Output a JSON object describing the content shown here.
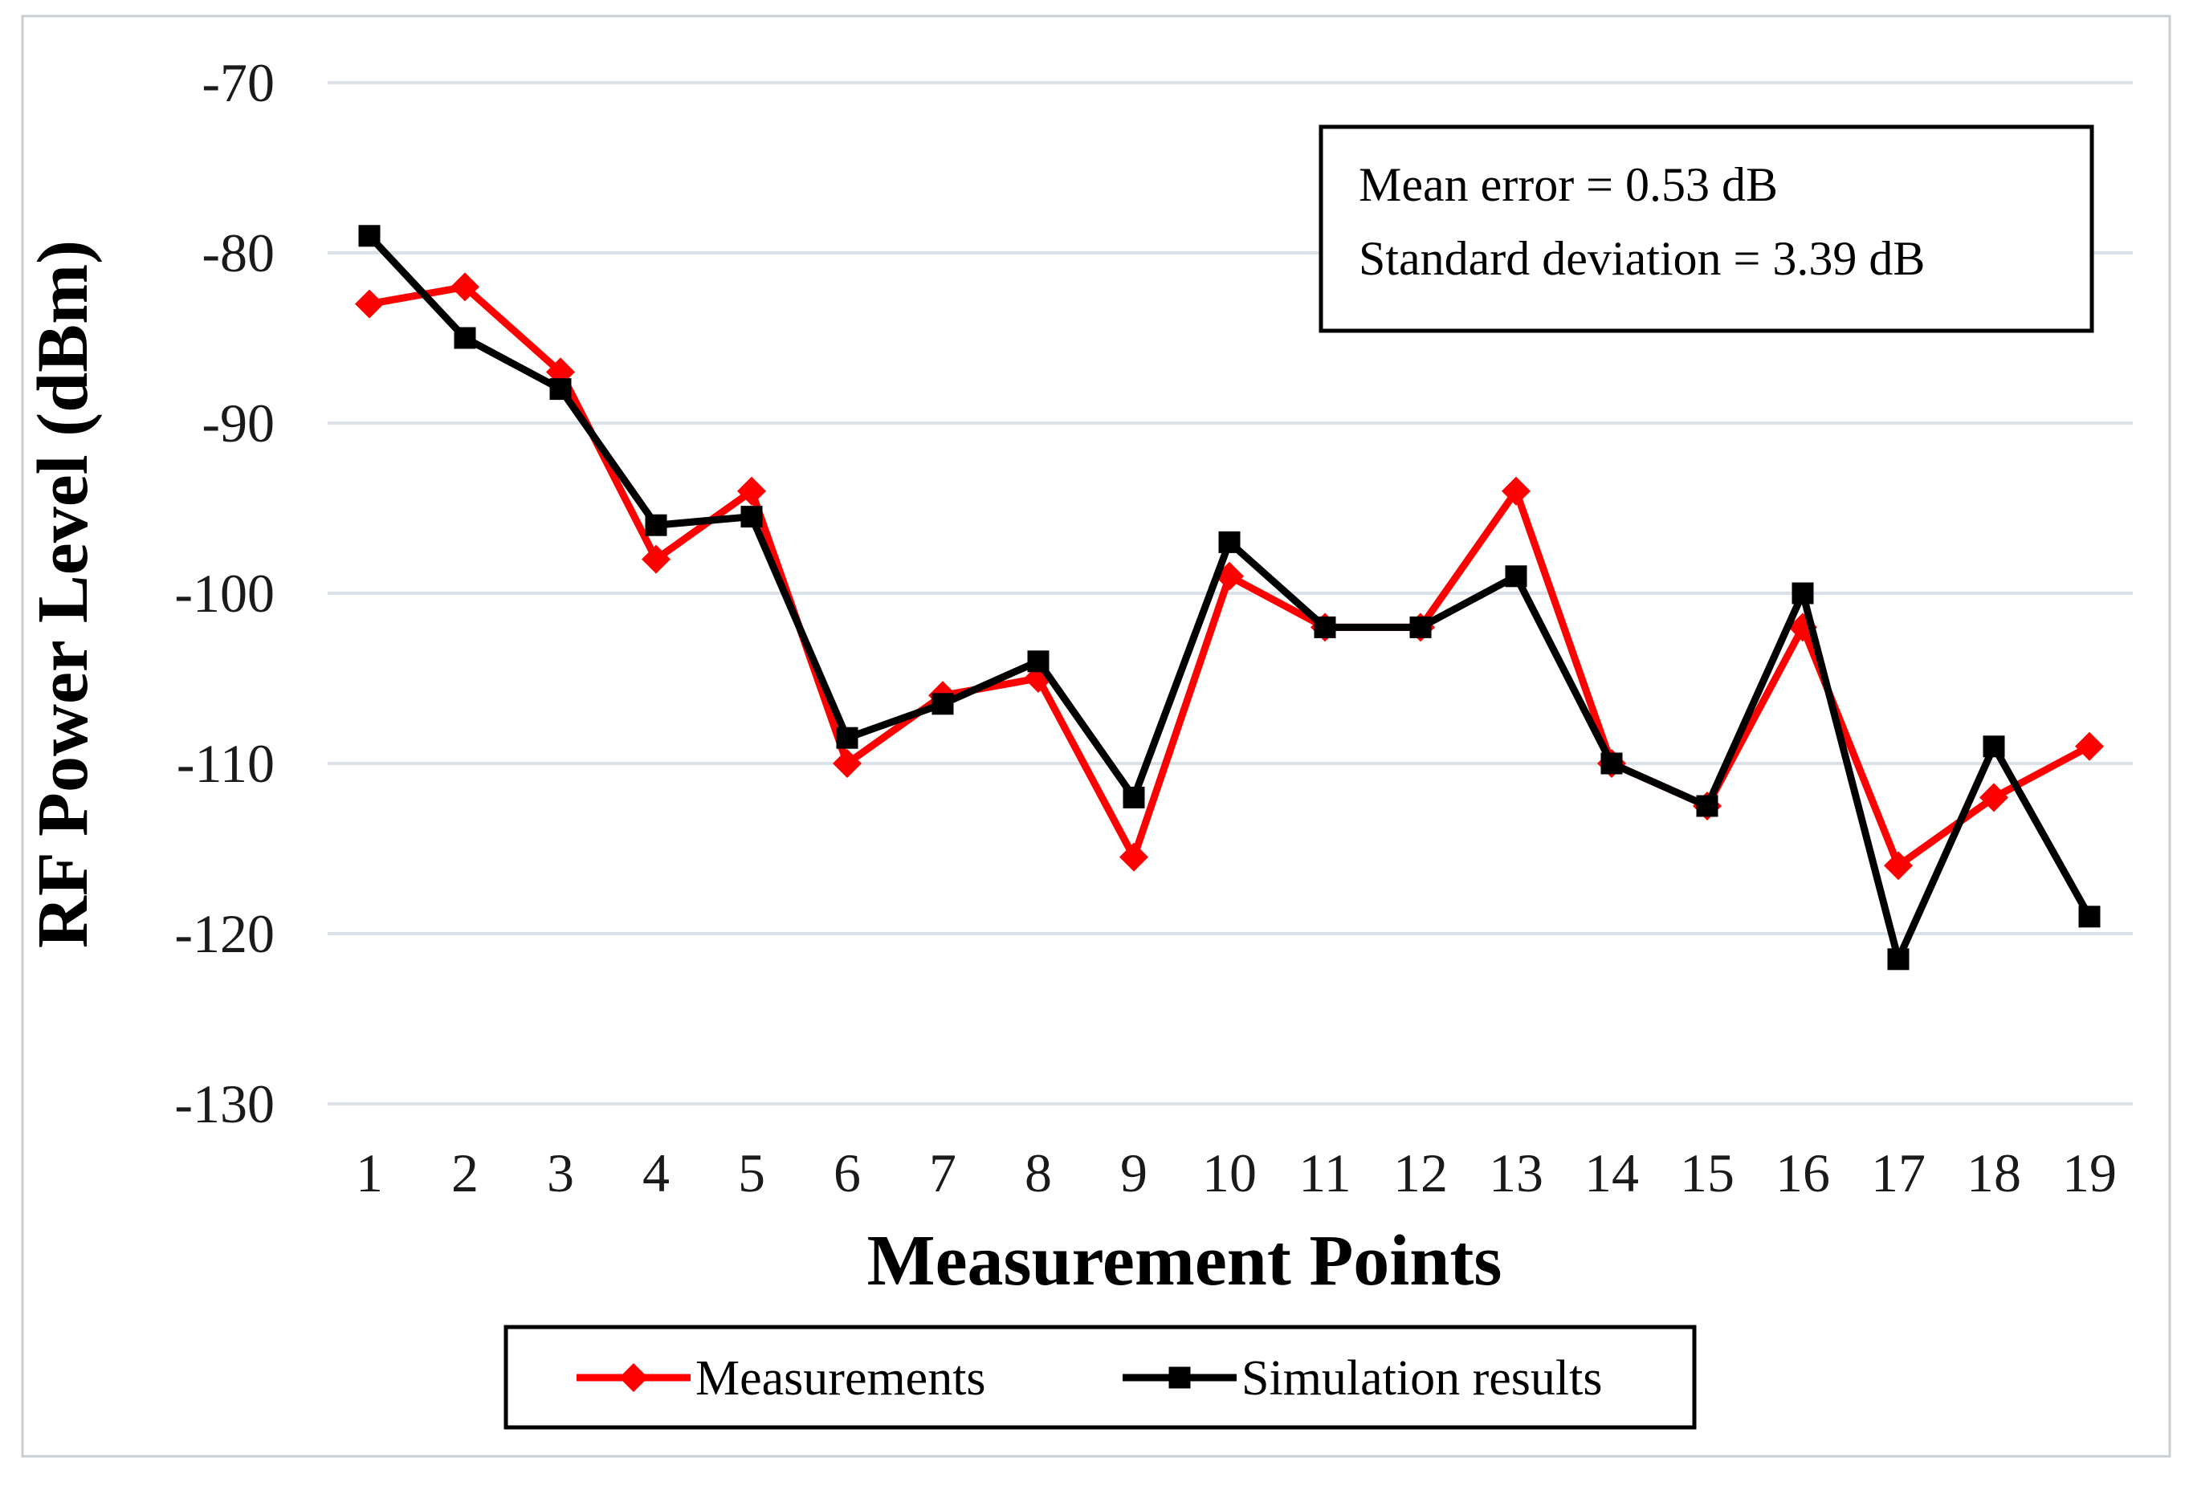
{
  "colors": {
    "background": "#ffffff",
    "figure_border": "#c9ced3",
    "gridline": "#dbe1e8",
    "measurements_red": "#fe0000",
    "simulation_black": "#000000",
    "text": "#1a1a1a"
  },
  "chart_data": {
    "type": "line",
    "title": "",
    "xlabel": "Measurement Points",
    "ylabel": "RF Power Level (dBm)",
    "x_tick_labels": [
      "1",
      "2",
      "3",
      "4",
      "5",
      "6",
      "7",
      "8",
      "9",
      "10",
      "11",
      "12",
      "13",
      "14",
      "15",
      "16",
      "17",
      "18",
      "19"
    ],
    "x": [
      1,
      2,
      3,
      4,
      5,
      6,
      7,
      8,
      9,
      10,
      11,
      12,
      13,
      14,
      15,
      16,
      17,
      18,
      19
    ],
    "ylim": [
      -130,
      -70
    ],
    "ytick_step": 10,
    "yticks": [
      -70,
      -80,
      -90,
      -100,
      -110,
      -120,
      -130
    ],
    "grid": true,
    "legend_position": "bottom",
    "series": [
      {
        "name": "Measurements",
        "color": "#fe0000",
        "marker": "diamond",
        "values": [
          -83,
          -82,
          -87,
          -98,
          -94,
          -110,
          -106,
          -105,
          -115.5,
          -99,
          -102,
          -102,
          -94,
          -110,
          -112.5,
          -102,
          -116,
          -112,
          -109
        ]
      },
      {
        "name": "Simulation results",
        "color": "#000000",
        "marker": "square",
        "values": [
          -79,
          -85,
          -88,
          -96,
          -95.5,
          -108.5,
          -106.5,
          -104,
          -112,
          -97,
          -102,
          -102,
          -99,
          -110,
          -112.5,
          -100,
          -121.5,
          -109,
          -119
        ]
      }
    ],
    "annotation": {
      "line1": "Mean error = 0.53 dB",
      "line2": "Standard deviation = 3.39 dB"
    }
  }
}
